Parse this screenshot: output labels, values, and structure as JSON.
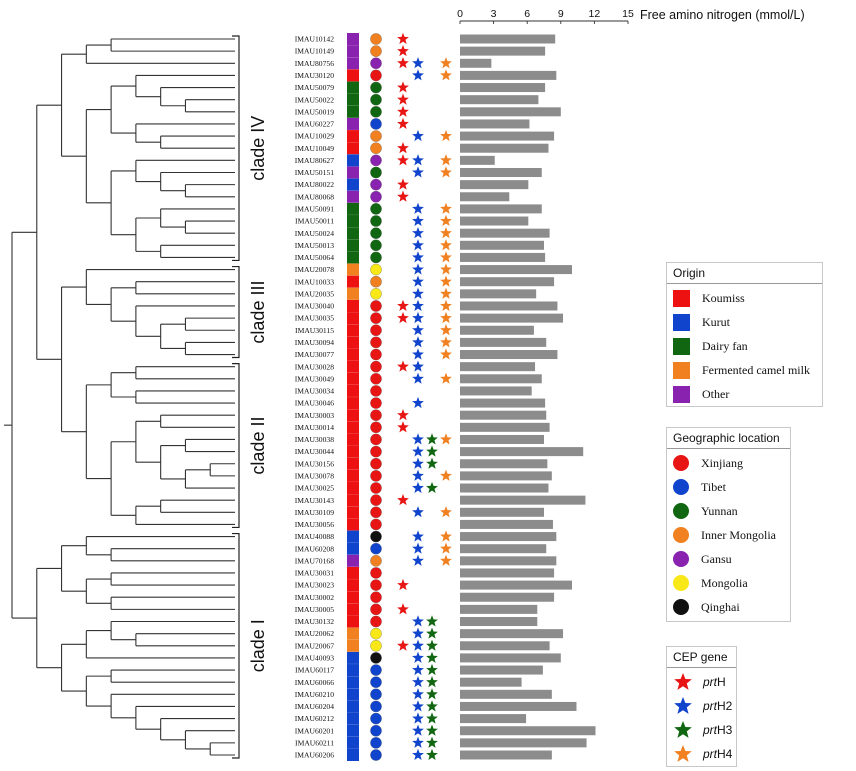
{
  "colors": {
    "origin": {
      "Koumiss": "#ee1111",
      "Kurut": "#1144cc",
      "Dairy fan": "#116611",
      "Fermented camel milk": "#f08020",
      "Other": "#8a22b0"
    },
    "location": {
      "Xinjiang": "#e81515",
      "Tibet": "#1144cc",
      "Yunnan": "#116611",
      "Inner Mongolia": "#f08020",
      "Gansu": "#8a22b0",
      "Mongolia": "#f8e818",
      "Qinghai": "#111111"
    },
    "gene": {
      "prtH": "#e81515",
      "prtH2": "#1144cc",
      "prtH3": "#116611",
      "prtH4": "#f08020"
    },
    "bar": "#8c8c8c"
  },
  "chart_data": {
    "type": "bar",
    "orientation": "horizontal",
    "title": "Free amino nitrogen (mmol/L)",
    "xlim": [
      0,
      15
    ],
    "xticks": [
      "0",
      "3",
      "6",
      "9",
      "12",
      "15"
    ],
    "origin_key": [
      "Koumiss",
      "Kurut",
      "Dairy fan",
      "Fermented camel milk",
      "Other"
    ],
    "location_key": [
      "Xinjiang",
      "Tibet",
      "Yunnan",
      "Inner Mongolia",
      "Gansu",
      "Mongolia",
      "Qinghai"
    ],
    "gene_key": [
      "prtH",
      "prtH2",
      "prtH3",
      "prtH4"
    ],
    "strains": [
      {
        "id": "IMAU10142",
        "origin": "Other",
        "location": "Inner Mongolia",
        "genes": [
          "prtH"
        ],
        "value": 8.5
      },
      {
        "id": "IMAU10149",
        "origin": "Other",
        "location": "Inner Mongolia",
        "genes": [
          "prtH"
        ],
        "value": 7.6
      },
      {
        "id": "IMAU80756",
        "origin": "Other",
        "location": "Gansu",
        "genes": [
          "prtH",
          "prtH2",
          "prtH4"
        ],
        "value": 2.8
      },
      {
        "id": "IMAU30120",
        "origin": "Koumiss",
        "location": "Xinjiang",
        "genes": [
          "prtH2",
          "prtH4"
        ],
        "value": 8.6
      },
      {
        "id": "IMAU50079",
        "origin": "Dairy fan",
        "location": "Yunnan",
        "genes": [
          "prtH"
        ],
        "value": 7.6
      },
      {
        "id": "IMAU50022",
        "origin": "Dairy fan",
        "location": "Yunnan",
        "genes": [
          "prtH"
        ],
        "value": 7.0
      },
      {
        "id": "IMAU50019",
        "origin": "Dairy fan",
        "location": "Yunnan",
        "genes": [
          "prtH"
        ],
        "value": 9.0
      },
      {
        "id": "IMAU60227",
        "origin": "Other",
        "location": "Tibet",
        "genes": [
          "prtH"
        ],
        "value": 6.2
      },
      {
        "id": "IMAU10029",
        "origin": "Koumiss",
        "location": "Inner Mongolia",
        "genes": [
          "prtH2",
          "prtH4"
        ],
        "value": 8.4
      },
      {
        "id": "IMAU10049",
        "origin": "Koumiss",
        "location": "Inner Mongolia",
        "genes": [
          "prtH"
        ],
        "value": 7.9
      },
      {
        "id": "IMAU80627",
        "origin": "Kurut",
        "location": "Gansu",
        "genes": [
          "prtH",
          "prtH2",
          "prtH4"
        ],
        "value": 3.1
      },
      {
        "id": "IMAU50151",
        "origin": "Other",
        "location": "Yunnan",
        "genes": [
          "prtH2",
          "prtH4"
        ],
        "value": 7.3
      },
      {
        "id": "IMAU80022",
        "origin": "Kurut",
        "location": "Gansu",
        "genes": [
          "prtH"
        ],
        "value": 6.1
      },
      {
        "id": "IMAU80068",
        "origin": "Other",
        "location": "Gansu",
        "genes": [
          "prtH"
        ],
        "value": 4.4
      },
      {
        "id": "IMAU50091",
        "origin": "Dairy fan",
        "location": "Yunnan",
        "genes": [
          "prtH2",
          "prtH4"
        ],
        "value": 7.3
      },
      {
        "id": "IMAU50011",
        "origin": "Dairy fan",
        "location": "Yunnan",
        "genes": [
          "prtH2",
          "prtH4"
        ],
        "value": 6.1
      },
      {
        "id": "IMAU50024",
        "origin": "Dairy fan",
        "location": "Yunnan",
        "genes": [
          "prtH2",
          "prtH4"
        ],
        "value": 8.0
      },
      {
        "id": "IMAU50013",
        "origin": "Dairy fan",
        "location": "Yunnan",
        "genes": [
          "prtH2",
          "prtH4"
        ],
        "value": 7.5
      },
      {
        "id": "IMAU50064",
        "origin": "Dairy fan",
        "location": "Yunnan",
        "genes": [
          "prtH2",
          "prtH4"
        ],
        "value": 7.6
      },
      {
        "id": "IMAU20078",
        "origin": "Fermented camel milk",
        "location": "Mongolia",
        "genes": [
          "prtH2",
          "prtH4"
        ],
        "value": 10.0
      },
      {
        "id": "IMAU10033",
        "origin": "Koumiss",
        "location": "Inner Mongolia",
        "genes": [
          "prtH2",
          "prtH4"
        ],
        "value": 8.4
      },
      {
        "id": "IMAU20035",
        "origin": "Fermented camel milk",
        "location": "Mongolia",
        "genes": [
          "prtH2",
          "prtH4"
        ],
        "value": 6.8
      },
      {
        "id": "IMAU30040",
        "origin": "Koumiss",
        "location": "Xinjiang",
        "genes": [
          "prtH",
          "prtH2",
          "prtH4"
        ],
        "value": 8.7
      },
      {
        "id": "IMAU30035",
        "origin": "Koumiss",
        "location": "Xinjiang",
        "genes": [
          "prtH",
          "prtH2",
          "prtH4"
        ],
        "value": 9.2
      },
      {
        "id": "IMAU30115",
        "origin": "Koumiss",
        "location": "Xinjiang",
        "genes": [
          "prtH2",
          "prtH4"
        ],
        "value": 6.6
      },
      {
        "id": "IMAU30094",
        "origin": "Koumiss",
        "location": "Xinjiang",
        "genes": [
          "prtH2",
          "prtH4"
        ],
        "value": 7.7
      },
      {
        "id": "IMAU30077",
        "origin": "Koumiss",
        "location": "Xinjiang",
        "genes": [
          "prtH2",
          "prtH4"
        ],
        "value": 8.7
      },
      {
        "id": "IMAU30028",
        "origin": "Koumiss",
        "location": "Xinjiang",
        "genes": [
          "prtH",
          "prtH2"
        ],
        "value": 6.7
      },
      {
        "id": "IMAU30049",
        "origin": "Koumiss",
        "location": "Xinjiang",
        "genes": [
          "prtH2",
          "prtH4"
        ],
        "value": 7.3
      },
      {
        "id": "IMAU30034",
        "origin": "Koumiss",
        "location": "Xinjiang",
        "genes": [],
        "value": 6.4
      },
      {
        "id": "IMAU30046",
        "origin": "Koumiss",
        "location": "Xinjiang",
        "genes": [
          "prtH2"
        ],
        "value": 7.6
      },
      {
        "id": "IMAU30003",
        "origin": "Koumiss",
        "location": "Xinjiang",
        "genes": [
          "prtH"
        ],
        "value": 7.7
      },
      {
        "id": "IMAU30014",
        "origin": "Koumiss",
        "location": "Xinjiang",
        "genes": [
          "prtH"
        ],
        "value": 8.0
      },
      {
        "id": "IMAU30038",
        "origin": "Koumiss",
        "location": "Xinjiang",
        "genes": [
          "prtH2",
          "prtH3",
          "prtH4"
        ],
        "value": 7.5
      },
      {
        "id": "IMAU30044",
        "origin": "Koumiss",
        "location": "Xinjiang",
        "genes": [
          "prtH2",
          "prtH3"
        ],
        "value": 11.0
      },
      {
        "id": "IMAU30156",
        "origin": "Koumiss",
        "location": "Xinjiang",
        "genes": [
          "prtH2",
          "prtH3"
        ],
        "value": 7.8
      },
      {
        "id": "IMAU30078",
        "origin": "Koumiss",
        "location": "Xinjiang",
        "genes": [
          "prtH2",
          "prtH4"
        ],
        "value": 8.2
      },
      {
        "id": "IMAU30025",
        "origin": "Koumiss",
        "location": "Xinjiang",
        "genes": [
          "prtH2",
          "prtH3"
        ],
        "value": 7.9
      },
      {
        "id": "IMAU30143",
        "origin": "Koumiss",
        "location": "Xinjiang",
        "genes": [
          "prtH"
        ],
        "value": 11.2
      },
      {
        "id": "IMAU30109",
        "origin": "Koumiss",
        "location": "Xinjiang",
        "genes": [
          "prtH2",
          "prtH4"
        ],
        "value": 7.5
      },
      {
        "id": "IMAU30056",
        "origin": "Koumiss",
        "location": "Xinjiang",
        "genes": [],
        "value": 8.3
      },
      {
        "id": "IMAU40088",
        "origin": "Kurut",
        "location": "Qinghai",
        "genes": [
          "prtH2",
          "prtH4"
        ],
        "value": 8.6
      },
      {
        "id": "IMAU60208",
        "origin": "Kurut",
        "location": "Tibet",
        "genes": [
          "prtH2",
          "prtH4"
        ],
        "value": 7.7
      },
      {
        "id": "IMAU70168",
        "origin": "Other",
        "location": "Inner Mongolia",
        "genes": [
          "prtH2",
          "prtH4"
        ],
        "value": 8.6
      },
      {
        "id": "IMAU30031",
        "origin": "Koumiss",
        "location": "Xinjiang",
        "genes": [],
        "value": 8.4
      },
      {
        "id": "IMAU30023",
        "origin": "Koumiss",
        "location": "Xinjiang",
        "genes": [
          "prtH"
        ],
        "value": 10.0
      },
      {
        "id": "IMAU30002",
        "origin": "Koumiss",
        "location": "Xinjiang",
        "genes": [],
        "value": 8.4
      },
      {
        "id": "IMAU30005",
        "origin": "Koumiss",
        "location": "Xinjiang",
        "genes": [
          "prtH"
        ],
        "value": 6.9
      },
      {
        "id": "IMAU30132",
        "origin": "Koumiss",
        "location": "Xinjiang",
        "genes": [
          "prtH2",
          "prtH3"
        ],
        "value": 6.9
      },
      {
        "id": "IMAU20062",
        "origin": "Fermented camel milk",
        "location": "Mongolia",
        "genes": [
          "prtH2",
          "prtH3"
        ],
        "value": 9.2
      },
      {
        "id": "IMAU20067",
        "origin": "Fermented camel milk",
        "location": "Mongolia",
        "genes": [
          "prtH",
          "prtH2",
          "prtH3"
        ],
        "value": 8.0
      },
      {
        "id": "IMAU40093",
        "origin": "Kurut",
        "location": "Qinghai",
        "genes": [
          "prtH2",
          "prtH3"
        ],
        "value": 9.0
      },
      {
        "id": "IMAU60117",
        "origin": "Kurut",
        "location": "Tibet",
        "genes": [
          "prtH2",
          "prtH3"
        ],
        "value": 7.4
      },
      {
        "id": "IMAU60066",
        "origin": "Kurut",
        "location": "Tibet",
        "genes": [
          "prtH2",
          "prtH3"
        ],
        "value": 5.5
      },
      {
        "id": "IMAU60210",
        "origin": "Kurut",
        "location": "Tibet",
        "genes": [
          "prtH2",
          "prtH3"
        ],
        "value": 8.2
      },
      {
        "id": "IMAU60204",
        "origin": "Kurut",
        "location": "Tibet",
        "genes": [
          "prtH2",
          "prtH3"
        ],
        "value": 10.4
      },
      {
        "id": "IMAU60212",
        "origin": "Kurut",
        "location": "Tibet",
        "genes": [
          "prtH2",
          "prtH3"
        ],
        "value": 5.9
      },
      {
        "id": "IMAU60201",
        "origin": "Kurut",
        "location": "Tibet",
        "genes": [
          "prtH2",
          "prtH3"
        ],
        "value": 12.1
      },
      {
        "id": "IMAU60211",
        "origin": "Kurut",
        "location": "Tibet",
        "genes": [
          "prtH2",
          "prtH3"
        ],
        "value": 11.3
      },
      {
        "id": "IMAU60206",
        "origin": "Kurut",
        "location": "Tibet",
        "genes": [
          "prtH2",
          "prtH3"
        ],
        "value": 8.2
      }
    ],
    "clades": [
      {
        "label": "clade IV",
        "first": 0,
        "last": 18
      },
      {
        "label": "clade III",
        "first": 19,
        "last": 26
      },
      {
        "label": "clade II",
        "first": 27,
        "last": 40
      },
      {
        "label": "clade I",
        "first": 41,
        "last": 59
      }
    ],
    "tree": [
      [
        [
          [
            [
              0,
              1
            ],
            2
          ],
          [
            [
              [
                3,
                [
                  4,
                  [
                    5,
                    6
                  ]
                ]
              ],
              [
                7,
                [
                  8,
                  9
                ]
              ]
            ],
            [
              [
                10,
                [
                  11,
                  [
                    12,
                    13
                  ]
                ]
              ],
              [
                [
                  14,
                  [
                    15,
                    16
                  ]
                ],
                [
                  17,
                  18
                ]
              ]
            ]
          ]
        ],
        [
          [
            19,
            [
              [
                20,
                21
              ],
              [
                22,
                [
                  [
                    23,
                    24
                  ],
                  [
                    25,
                    26
                  ]
                ]
              ]
            ]
          ],
          [
            [
              [
                27,
                28
              ],
              [
                29,
                30
              ]
            ],
            [
              [
                [
                  31,
                  32
                ],
                [
                  [
                    33,
                    34
                  ],
                  [
                    [
                      35,
                      36
                    ],
                    37
                  ]
                ]
              ],
              [
                [
                  38,
                  39
                ],
                40
              ]
            ]
          ]
        ]
      ],
      [
        [
          [
            41,
            [
              42,
              43
            ]
          ],
          [
            [
              44,
              45
            ],
            [
              46,
              47
            ]
          ]
        ],
        [
          [
            [
              48,
              [
                49,
                50
              ]
            ],
            51
          ],
          [
            [
              52,
              53
            ],
            [
              54,
              [
                55,
                [
                  56,
                  [
                    57,
                    [
                      58,
                      59
                    ]
                  ]
                ]
              ]
            ]
          ]
        ]
      ]
    ]
  },
  "legends": {
    "origin": {
      "title": "Origin",
      "items": [
        "Koumiss",
        "Kurut",
        "Dairy fan",
        "Fermented camel milk",
        "Other"
      ]
    },
    "location": {
      "title": "Geographic location",
      "items": [
        "Xinjiang",
        "Tibet",
        "Yunnan",
        "Inner Mongolia",
        "Gansu",
        "Mongolia",
        "Qinghai"
      ]
    },
    "gene": {
      "title": "CEP gene",
      "prefix": "prt",
      "items": [
        "H",
        "H2",
        "H3",
        "H4"
      ]
    }
  }
}
